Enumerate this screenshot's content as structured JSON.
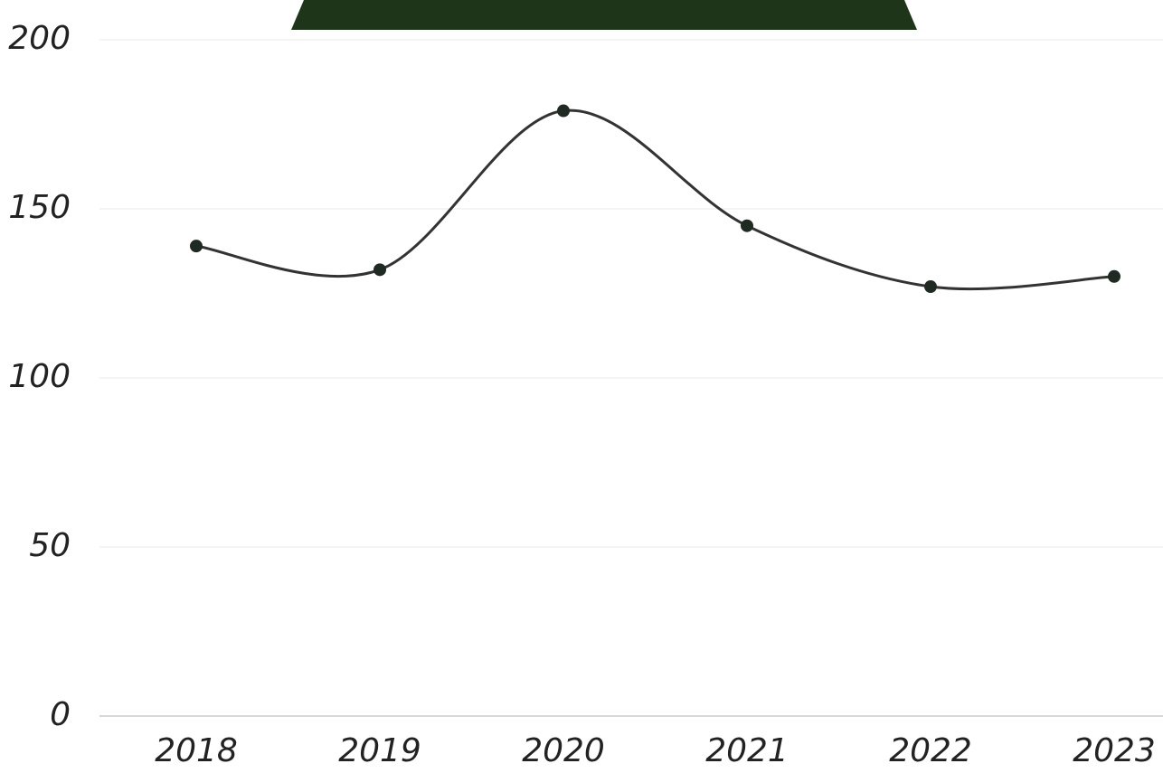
{
  "chart_data": {
    "type": "line",
    "categories": [
      "2018",
      "2019",
      "2020",
      "2021",
      "2022",
      "2023"
    ],
    "values": [
      139,
      132,
      179,
      145,
      127,
      130
    ],
    "color": "#333333",
    "marker_color": "#1f2a22",
    "ylim": [
      0,
      200
    ],
    "yticks": [
      0,
      50,
      100,
      150,
      200
    ],
    "grid": true,
    "smooth": true
  }
}
